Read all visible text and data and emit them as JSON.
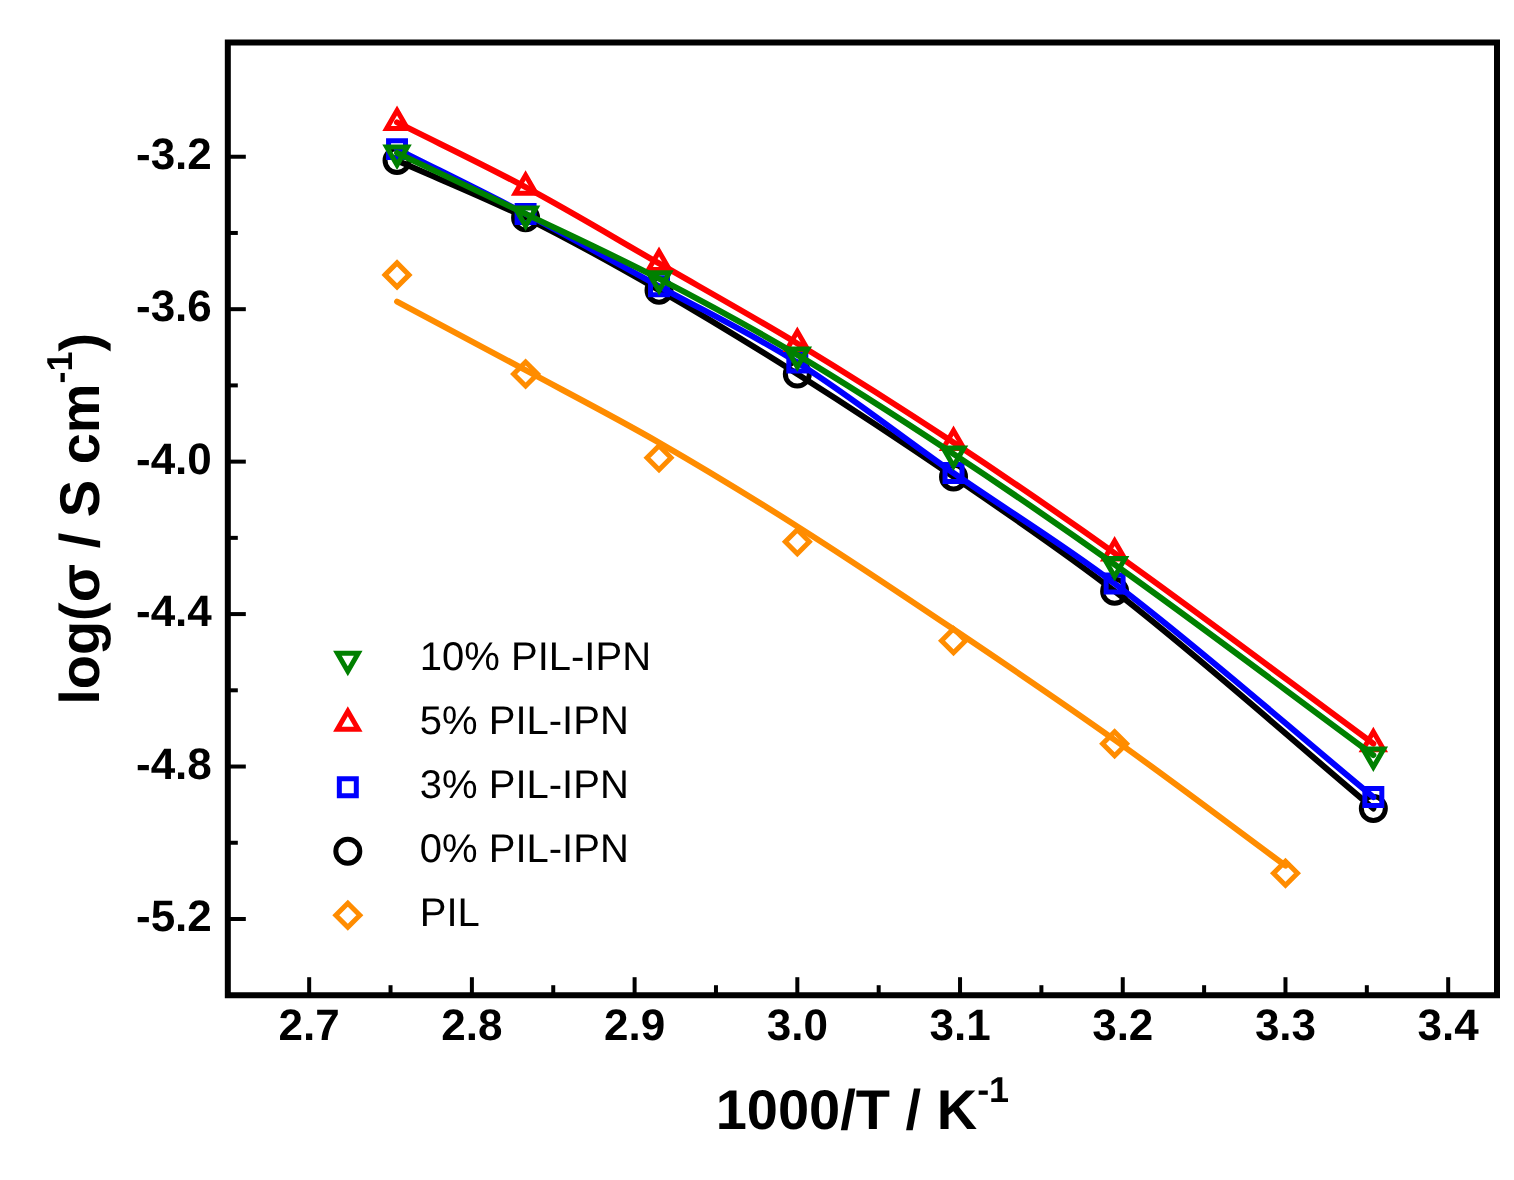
{
  "chart_data": {
    "type": "line",
    "xlabel": "1000/T / K$^{-1}$",
    "ylabel": "log(σ / S cm$^{-1}$)",
    "xlim": [
      2.65,
      3.43
    ],
    "xticks": [
      {
        "value": 2.7,
        "label": "2.7"
      },
      {
        "value": 2.8,
        "label": "2.8"
      },
      {
        "value": 2.9,
        "label": "2.9"
      },
      {
        "value": 3.0,
        "label": "3.0"
      },
      {
        "value": 3.1,
        "label": "3.1"
      },
      {
        "value": 3.2,
        "label": "3.2"
      },
      {
        "value": 3.3,
        "label": "3.3"
      },
      {
        "value": 3.4,
        "label": "3.4"
      }
    ],
    "ylim": [
      -5.4,
      -2.9
    ],
    "yticks": [
      {
        "value": -5.2,
        "label": "-5.2"
      },
      {
        "value": -4.8,
        "label": "-4.8"
      },
      {
        "value": -4.4,
        "label": "-4.4"
      },
      {
        "value": -4.0,
        "label": "-4.0"
      },
      {
        "value": -3.6,
        "label": "-3.6"
      },
      {
        "value": -3.2,
        "label": "-3.2"
      }
    ],
    "grid": false,
    "legend": "bottom left",
    "line_style": "solid",
    "x": [
      2.754,
      2.833,
      2.915,
      3.0,
      3.096,
      3.195,
      3.354
    ],
    "series": [
      {
        "name": "10% PIL-IPN",
        "color": "#008000",
        "marker": "triangle_down",
        "values": [
          -3.19,
          -3.35,
          -3.52,
          -3.72,
          -3.98,
          -4.27,
          -4.77
        ]
      },
      {
        "name": "5% PIL-IPN",
        "color": "#ff0000",
        "marker": "triangle",
        "values": [
          -3.11,
          -3.28,
          -3.48,
          -3.69,
          -3.95,
          -4.24,
          -4.74
        ]
      },
      {
        "name": "3% PIL-IPN",
        "color": "#0000ff",
        "marker": "square",
        "values": [
          -3.18,
          -3.35,
          -3.54,
          -3.74,
          -4.03,
          -4.32,
          -4.88
        ]
      },
      {
        "name": "0% PIL-IPN",
        "color": "#000000",
        "marker": "circle",
        "values": [
          -3.21,
          -3.36,
          -3.55,
          -3.77,
          -4.04,
          -4.34,
          -4.91
        ]
      },
      {
        "name": "PIL",
        "type": "scatter",
        "color": "#ff8c00",
        "marker": "diamond",
        "x": [
          2.754,
          2.833,
          2.915,
          3.0,
          3.096,
          3.195,
          3.3
        ],
        "values": [
          -3.51,
          -3.77,
          -3.99,
          -4.21,
          -4.47,
          -4.74,
          -5.08
        ]
      },
      {
        "type": "line",
        "color": "#ff8c00",
        "marker": "none",
        "x": [
          2.754,
          2.833,
          2.915,
          3.0,
          3.096,
          3.195,
          3.3
        ],
        "values": [
          -3.58,
          -3.76,
          -3.95,
          -4.17,
          -4.44,
          -4.73,
          -5.06
        ]
      }
    ]
  }
}
